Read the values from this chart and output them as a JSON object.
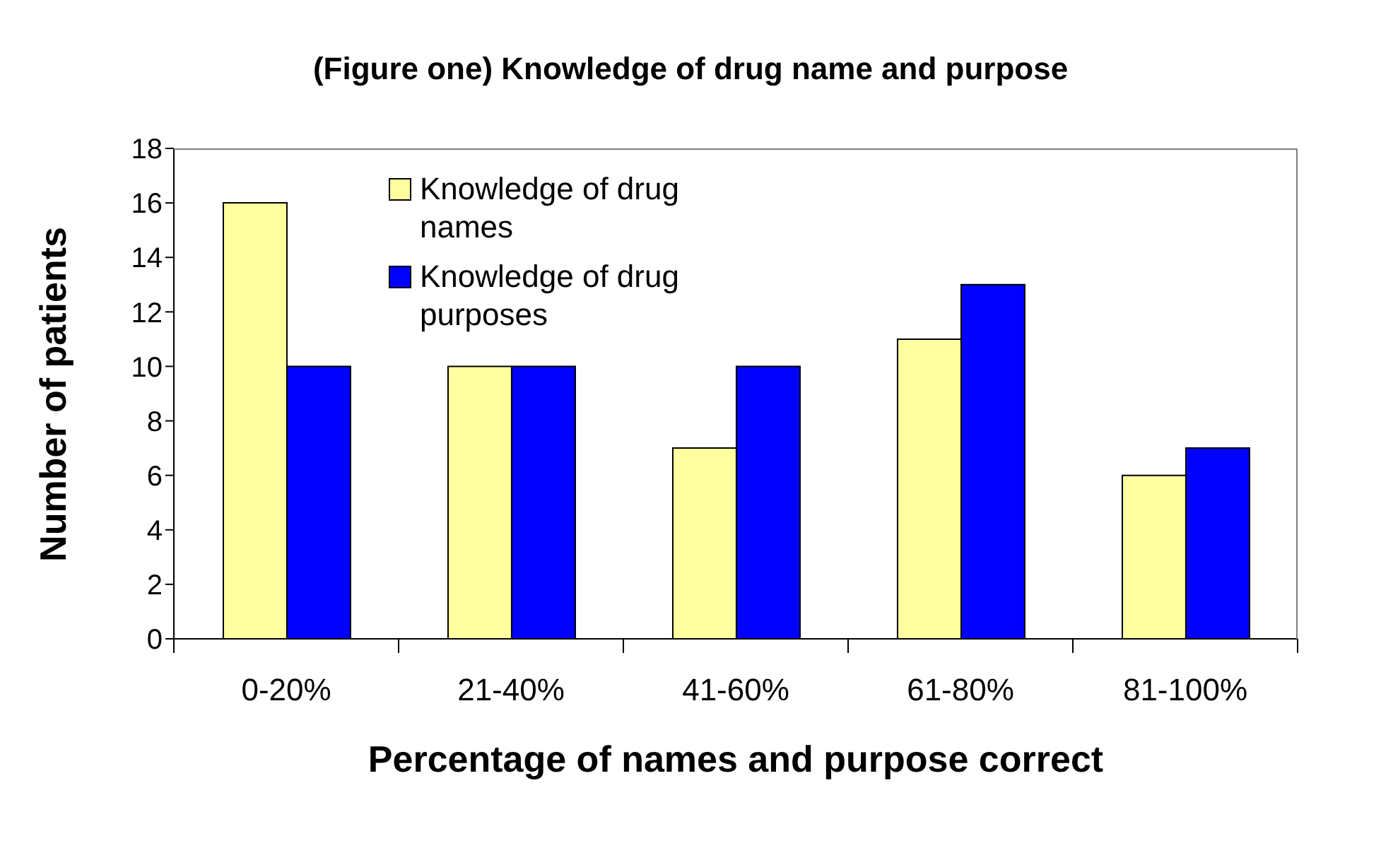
{
  "chart_data": {
    "type": "bar",
    "title": "(Figure one) Knowledge of drug name and purpose",
    "xlabel": "Percentage of names and purpose correct",
    "ylabel": "Number of patients",
    "categories": [
      "0-20%",
      "21-40%",
      "41-60%",
      "61-80%",
      "81-100%"
    ],
    "series": [
      {
        "name": "Knowledge of drug names",
        "color": "#ffffa0",
        "values": [
          16,
          10,
          7,
          11,
          6
        ]
      },
      {
        "name": "Knowledge of drug purposes",
        "color": "#0000ff",
        "values": [
          10,
          10,
          10,
          13,
          7
        ]
      }
    ],
    "ylim": [
      0,
      18
    ],
    "yticks": [
      0,
      2,
      4,
      6,
      8,
      10,
      12,
      14,
      16,
      18
    ],
    "grid": false,
    "legend": "top left"
  }
}
